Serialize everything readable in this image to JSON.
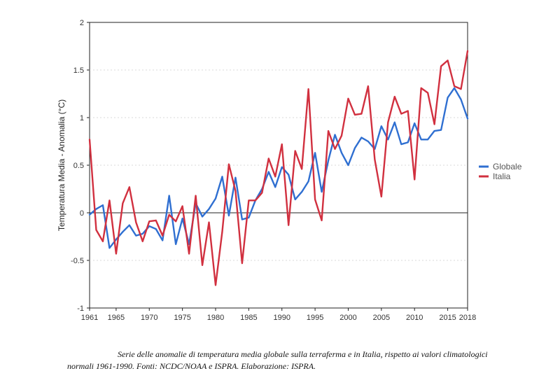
{
  "chart_data": {
    "type": "line",
    "title": "",
    "xlabel": "",
    "ylabel": "Temperatura Media - Anomalia (°C)",
    "xlim": [
      1961,
      2018
    ],
    "ylim": [
      -1,
      2
    ],
    "x_ticks": [
      "1961",
      "1965",
      "1970",
      "1975",
      "1980",
      "1985",
      "1990",
      "1995",
      "2000",
      "2005",
      "2010",
      "2015",
      "2018"
    ],
    "y_ticks": [
      "-1",
      "-0.5",
      "0",
      "0.5",
      "1",
      "1.5",
      "2"
    ],
    "grid": "horizontal dotted",
    "legend_position": "right",
    "x": [
      1961,
      1962,
      1963,
      1964,
      1965,
      1966,
      1967,
      1968,
      1969,
      1970,
      1971,
      1972,
      1973,
      1974,
      1975,
      1976,
      1977,
      1978,
      1979,
      1980,
      1981,
      1982,
      1983,
      1984,
      1985,
      1986,
      1987,
      1988,
      1989,
      1990,
      1991,
      1992,
      1993,
      1994,
      1995,
      1996,
      1997,
      1998,
      1999,
      2000,
      2001,
      2002,
      2003,
      2004,
      2005,
      2006,
      2007,
      2008,
      2009,
      2010,
      2011,
      2012,
      2013,
      2014,
      2015,
      2016,
      2017,
      2018
    ],
    "series": [
      {
        "name": "Globale",
        "color": "#2f6fd1",
        "values": [
          -0.02,
          0.04,
          0.08,
          -0.37,
          -0.28,
          -0.2,
          -0.13,
          -0.24,
          -0.22,
          -0.14,
          -0.17,
          -0.29,
          0.18,
          -0.33,
          -0.06,
          -0.33,
          0.1,
          -0.04,
          0.04,
          0.15,
          0.38,
          -0.03,
          0.37,
          -0.07,
          -0.05,
          0.13,
          0.25,
          0.43,
          0.27,
          0.48,
          0.4,
          0.14,
          0.22,
          0.33,
          0.63,
          0.22,
          0.55,
          0.82,
          0.63,
          0.5,
          0.68,
          0.79,
          0.75,
          0.67,
          0.91,
          0.77,
          0.95,
          0.72,
          0.74,
          0.94,
          0.77,
          0.77,
          0.86,
          0.87,
          1.21,
          1.31,
          1.19,
          0.99
        ]
      },
      {
        "name": "Italia",
        "color": "#d1303f",
        "values": [
          0.77,
          -0.18,
          -0.3,
          0.13,
          -0.43,
          0.1,
          0.27,
          -0.1,
          -0.3,
          -0.09,
          -0.08,
          -0.24,
          -0.02,
          -0.09,
          0.07,
          -0.43,
          0.18,
          -0.55,
          -0.1,
          -0.76,
          -0.2,
          0.51,
          0.23,
          -0.53,
          0.13,
          0.13,
          0.21,
          0.57,
          0.38,
          0.72,
          -0.13,
          0.65,
          0.46,
          1.3,
          0.14,
          -0.08,
          0.86,
          0.67,
          0.81,
          1.2,
          1.03,
          1.04,
          1.33,
          0.56,
          0.17,
          0.95,
          1.22,
          1.04,
          1.07,
          0.35,
          1.31,
          1.26,
          0.93,
          1.54,
          1.6,
          1.33,
          1.3,
          1.7
        ]
      }
    ]
  },
  "caption": {
    "text": "Serie delle anomalie di temperatura media globale sulla terraferma e in Italia, rispetto ai valori climatologici normali 1961-1990. Fonti: NCDC/NOAA e ISPRA. Elaborazione: ISPRA."
  }
}
